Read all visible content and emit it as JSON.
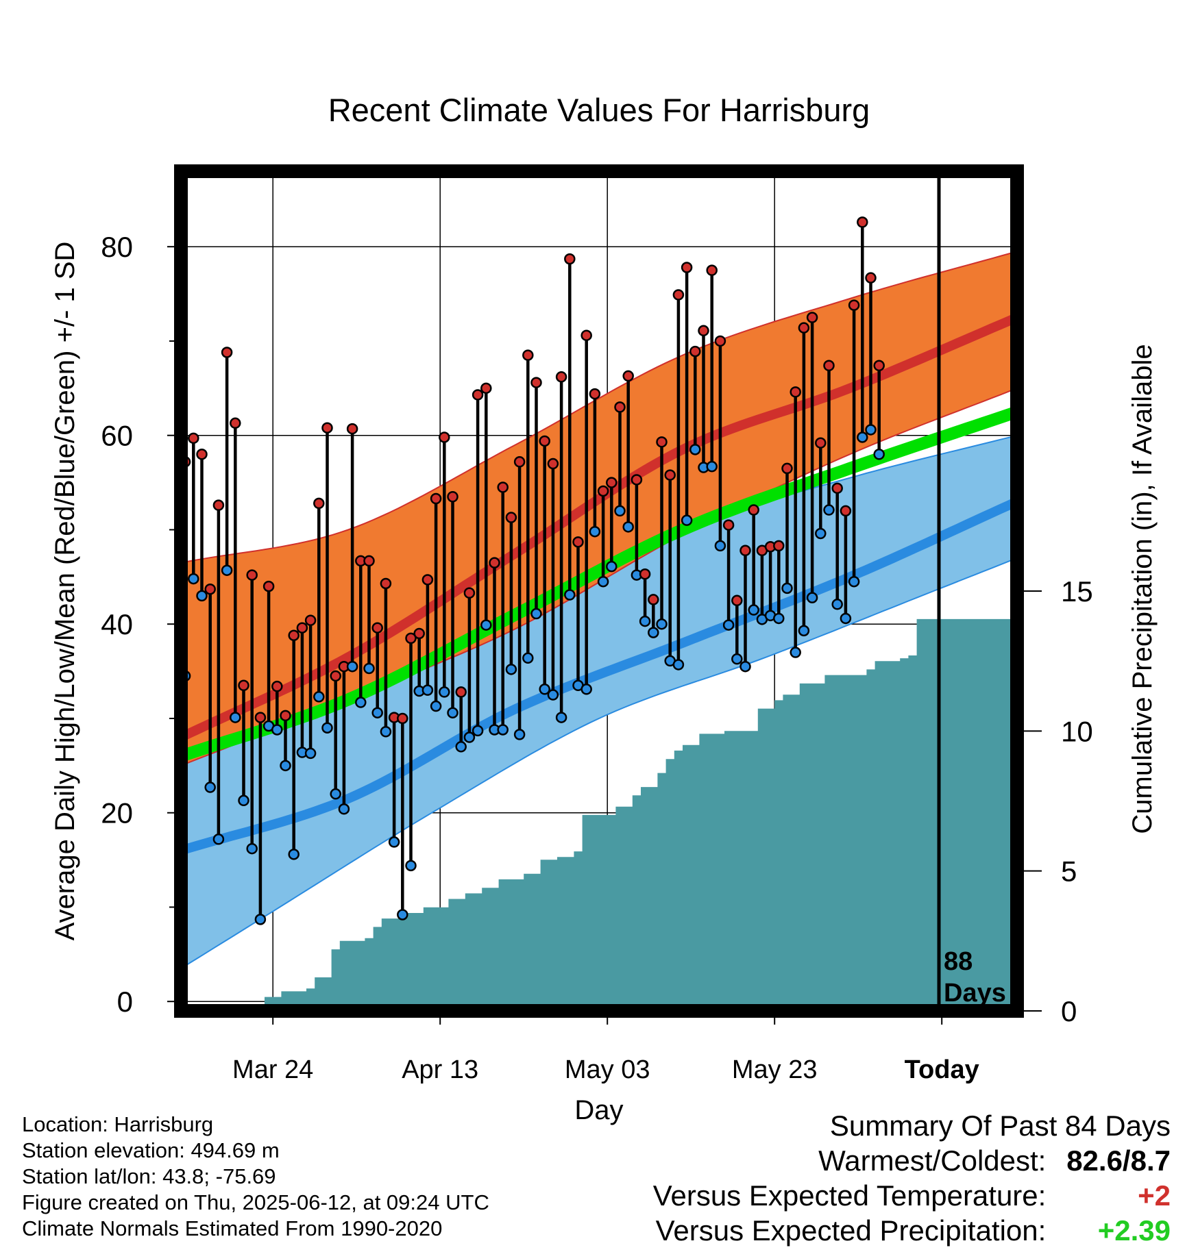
{
  "chart_data": {
    "type": "line",
    "title": "Recent Climate Values For Harrisburg",
    "xlabel": "Day",
    "ylabel": "Average Daily High/Low/Mean (Red/Blue/Green) +/- 1 SD",
    "y2label": "Cumulative Precipitation (in), If Available",
    "x_tick_labels": [
      "Mar 24",
      "Apr 13",
      "May 03",
      "May 23",
      "Today"
    ],
    "x_start": "2025-03-13",
    "xlim": [
      "2025-03-13",
      "2025-06-21"
    ],
    "ylim": [
      -1,
      88
    ],
    "y_ticks": [
      0,
      20,
      40,
      60,
      80
    ],
    "y2lim": [
      0,
      30
    ],
    "y2_ticks": [
      0,
      5,
      10,
      15
    ],
    "today": "2025-06-12",
    "today_label_1": "88",
    "today_label_2": "Days",
    "normals": {
      "high_mean": [
        [
          0,
          28.0
        ],
        [
          20,
          36.5
        ],
        [
          40,
          47.5
        ],
        [
          60,
          58.5
        ],
        [
          80,
          65.0
        ],
        [
          100,
          72.5
        ]
      ],
      "high_upper": [
        [
          0,
          46.5
        ],
        [
          20,
          50.0
        ],
        [
          40,
          59.0
        ],
        [
          60,
          68.5
        ],
        [
          80,
          74.5
        ],
        [
          100,
          79.5
        ]
      ],
      "high_lower": [
        [
          0,
          25.0
        ],
        [
          20,
          32.0
        ],
        [
          40,
          39.5
        ],
        [
          60,
          49.5
        ],
        [
          80,
          58.0
        ],
        [
          100,
          65.0
        ]
      ],
      "mean_mean": [
        [
          0,
          26.0
        ],
        [
          20,
          32.0
        ],
        [
          40,
          41.0
        ],
        [
          60,
          50.0
        ],
        [
          80,
          56.5
        ],
        [
          100,
          62.5
        ]
      ],
      "low_mean": [
        [
          0,
          16.0
        ],
        [
          20,
          21.5
        ],
        [
          40,
          31.0
        ],
        [
          60,
          38.0
        ],
        [
          80,
          45.0
        ],
        [
          100,
          53.0
        ]
      ],
      "low_upper": [
        [
          0,
          29.0
        ],
        [
          20,
          32.0
        ],
        [
          40,
          41.0
        ],
        [
          60,
          50.0
        ],
        [
          80,
          55.5
        ],
        [
          100,
          60.0
        ]
      ],
      "low_lower": [
        [
          0,
          3.5
        ],
        [
          10,
          9.0
        ],
        [
          30,
          20.0
        ],
        [
          50,
          30.0
        ],
        [
          70,
          36.5
        ],
        [
          90,
          43.5
        ],
        [
          100,
          47.0
        ]
      ]
    },
    "series": [
      {
        "name": "High",
        "color": "#d0312d",
        "values": [
          57.2,
          59.7,
          58.0,
          43.7,
          52.6,
          68.8,
          61.3,
          33.5,
          45.2,
          30.1,
          44.0,
          33.4,
          30.3,
          38.8,
          39.6,
          40.4,
          52.8,
          60.8,
          34.5,
          35.5,
          60.7,
          46.7,
          46.7,
          39.6,
          44.3,
          30.1,
          30.0,
          38.5,
          39.0,
          44.7,
          53.3,
          59.8,
          53.5,
          32.8,
          43.3,
          64.3,
          65.0,
          46.5,
          54.5,
          51.3,
          57.2,
          68.5,
          65.6,
          59.4,
          57.0,
          66.2,
          78.7,
          48.7,
          70.6,
          64.4,
          54.1,
          55.0,
          63.0,
          66.3,
          55.3,
          45.3,
          42.6,
          59.3,
          55.8,
          74.9,
          77.8,
          68.9,
          71.1,
          77.5,
          70.0,
          50.5,
          42.5,
          47.8,
          52.1,
          47.8,
          48.2,
          48.3,
          56.5,
          64.6,
          71.4,
          72.5,
          59.2,
          67.4,
          54.4,
          52.0,
          73.8,
          82.6,
          76.7,
          67.4
        ]
      },
      {
        "name": "Low",
        "color": "#2a8be0",
        "values": [
          34.5,
          44.8,
          43.0,
          22.7,
          17.2,
          45.7,
          30.1,
          21.3,
          16.2,
          8.7,
          29.2,
          28.8,
          25.0,
          15.6,
          26.4,
          26.3,
          32.3,
          29.0,
          22.0,
          20.4,
          35.5,
          31.7,
          35.3,
          30.6,
          28.6,
          16.9,
          9.2,
          14.4,
          32.9,
          33.0,
          31.3,
          32.8,
          30.6,
          27.0,
          28.0,
          28.7,
          39.9,
          28.8,
          28.8,
          35.2,
          28.3,
          36.4,
          41.1,
          33.1,
          32.5,
          30.1,
          43.1,
          33.5,
          33.1,
          49.8,
          44.5,
          46.1,
          52.0,
          50.3,
          45.2,
          40.3,
          39.1,
          40.0,
          36.1,
          35.7,
          51.0,
          58.5,
          56.6,
          56.7,
          48.3,
          39.9,
          36.3,
          35.5,
          41.5,
          40.5,
          40.9,
          40.6,
          43.8,
          37.0,
          39.3,
          42.8,
          49.6,
          52.1,
          42.1,
          40.6,
          44.5,
          59.8,
          60.6,
          58.0
        ]
      }
    ],
    "precipitation": [
      [
        0,
        0
      ],
      [
        2,
        0.1
      ],
      [
        8,
        0.2
      ],
      [
        10,
        0.5
      ],
      [
        12,
        0.7
      ],
      [
        15,
        0.8
      ],
      [
        16,
        1.2
      ],
      [
        18,
        2.2
      ],
      [
        19,
        2.5
      ],
      [
        22,
        2.6
      ],
      [
        23,
        3.0
      ],
      [
        24,
        3.3
      ],
      [
        27,
        3.5
      ],
      [
        29,
        3.7
      ],
      [
        32,
        4.0
      ],
      [
        34,
        4.2
      ],
      [
        36,
        4.4
      ],
      [
        38,
        4.7
      ],
      [
        41,
        4.9
      ],
      [
        43,
        5.4
      ],
      [
        45,
        5.5
      ],
      [
        47,
        5.7
      ],
      [
        48,
        7.0
      ],
      [
        52,
        7.3
      ],
      [
        54,
        7.7
      ],
      [
        55,
        8.0
      ],
      [
        57,
        8.5
      ],
      [
        58,
        9.0
      ],
      [
        59,
        9.3
      ],
      [
        60,
        9.5
      ],
      [
        62,
        9.9
      ],
      [
        65,
        10.0
      ],
      [
        69,
        10.8
      ],
      [
        71,
        11.1
      ],
      [
        72,
        11.3
      ],
      [
        74,
        11.7
      ],
      [
        77,
        12.0
      ],
      [
        82,
        12.2
      ],
      [
        83,
        12.5
      ],
      [
        86,
        12.6
      ],
      [
        87,
        12.7
      ],
      [
        88,
        14.0
      ],
      [
        100,
        14.0
      ]
    ],
    "colors": {
      "high_band": "#f07a30",
      "high_line": "#d0302c",
      "mean_line": "#00e000",
      "low_band": "#80c0e8",
      "low_line": "#2a8be0",
      "precip": "#4a9aa2",
      "positive": "#22cc22",
      "negative": "#d0312d"
    }
  },
  "info": {
    "location": "Location: Harrisburg",
    "elevation": "Station elevation: 494.69 m",
    "latlon": "Station lat/lon: 43.8; -75.69",
    "created": "Figure created on Thu, 2025-06-12, at 09:24 UTC",
    "normals": "Climate Normals Estimated From 1990-2020"
  },
  "summary": {
    "title": "Summary Of Past 84 Days",
    "warm_cold_label": "Warmest/Coldest:",
    "warm_cold_value": "82.6/8.7",
    "temp_label": "Versus Expected Temperature:",
    "temp_value": "+2",
    "precip_label": "Versus Expected Precipitation:",
    "precip_value": "+2.39"
  }
}
